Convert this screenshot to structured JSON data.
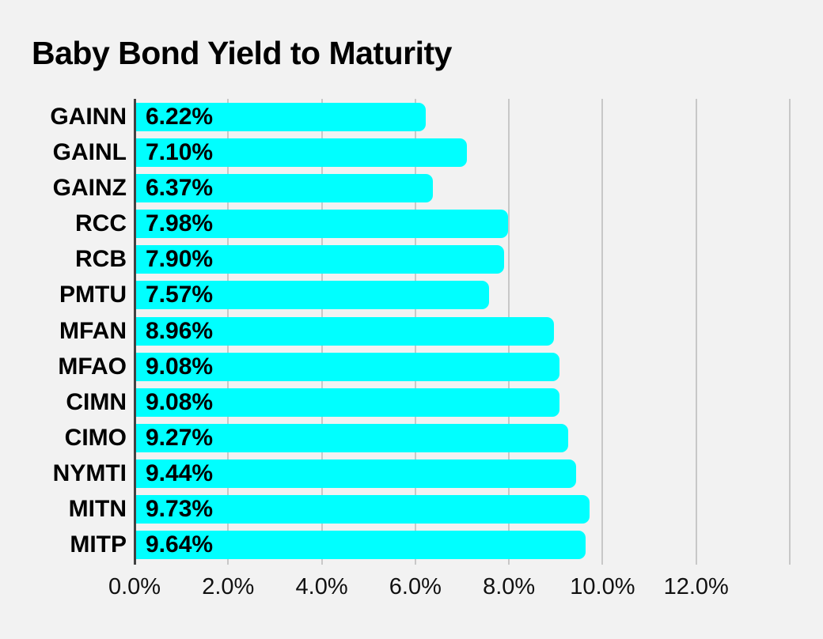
{
  "chart_data": {
    "type": "bar",
    "orientation": "horizontal",
    "title": "Baby Bond Yield to Maturity",
    "categories": [
      "GAINN",
      "GAINL",
      "GAINZ",
      "RCC",
      "RCB",
      "PMTU",
      "MFAN",
      "MFAO",
      "CIMN",
      "CIMO",
      "NYMTI",
      "MITN",
      "MITP"
    ],
    "values": [
      6.22,
      7.1,
      6.37,
      7.98,
      7.9,
      7.57,
      8.96,
      9.08,
      9.08,
      9.27,
      9.44,
      9.73,
      9.64
    ],
    "value_labels": [
      "6.22%",
      "7.10%",
      "6.37%",
      "7.98%",
      "7.90%",
      "7.57%",
      "8.96%",
      "9.08%",
      "9.08%",
      "9.27%",
      "9.44%",
      "9.73%",
      "9.64%"
    ],
    "xlabel": "",
    "ylabel": "",
    "xlim": [
      0,
      14
    ],
    "x_tick_values": [
      0,
      2,
      4,
      6,
      8,
      10,
      12
    ],
    "x_tick_labels": [
      "0.0%",
      "2.0%",
      "4.0%",
      "6.0%",
      "8.0%",
      "10.0%",
      "12.0%"
    ],
    "gridlines_pct": [
      0,
      2,
      4,
      6,
      8,
      10,
      12,
      14
    ],
    "grid": "vertical",
    "legend": "none",
    "colors": {
      "background": "#F2F2F2",
      "bar": "#00FFFF",
      "gridline": "#C8C8C8",
      "axis_line": "#424242",
      "title_text": "#000000",
      "label_text": "#000000",
      "tick_text": "#111111"
    }
  }
}
